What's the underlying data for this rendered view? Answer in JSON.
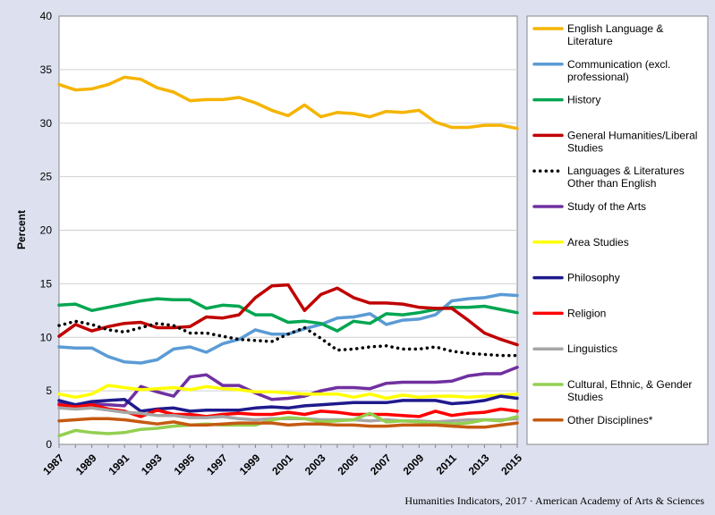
{
  "footer": {
    "credit": "Humanities Indicators, 2017 · American Academy of Arts & Sciences"
  },
  "chart_data": {
    "type": "line",
    "ylabel": "Percent",
    "xlabel": "",
    "ylim": [
      0,
      40
    ],
    "yticks": [
      0,
      5,
      10,
      15,
      20,
      25,
      30,
      35,
      40
    ],
    "x": [
      1987,
      1988,
      1989,
      1990,
      1991,
      1992,
      1993,
      1994,
      1995,
      1996,
      1997,
      1998,
      1999,
      2000,
      2001,
      2002,
      2003,
      2004,
      2005,
      2006,
      2007,
      2008,
      2009,
      2010,
      2011,
      2012,
      2013,
      2014,
      2015
    ],
    "xtick_labels": [
      "1987",
      "1989",
      "1991",
      "1993",
      "1995",
      "1997",
      "1999",
      "2001",
      "2003",
      "2005",
      "2007",
      "2009",
      "2011",
      "2013",
      "2015"
    ],
    "grid": "horizontal",
    "legend_position": "right",
    "series": [
      {
        "name": "English Language & Literature",
        "color": "#f5b400",
        "style": "solid",
        "values": [
          33.6,
          33.1,
          33.2,
          33.6,
          34.3,
          34.1,
          33.3,
          32.9,
          32.1,
          32.2,
          32.2,
          32.4,
          31.9,
          31.2,
          30.7,
          31.7,
          30.6,
          31.0,
          30.9,
          30.6,
          31.1,
          31.0,
          31.2,
          30.1,
          29.6,
          29.6,
          29.8,
          29.8,
          29.5
        ]
      },
      {
        "name": "Communication (excl. professional)",
        "color": "#5b9bd5",
        "style": "solid",
        "values": [
          9.1,
          9.0,
          9.0,
          8.2,
          7.7,
          7.6,
          7.9,
          8.9,
          9.1,
          8.6,
          9.4,
          9.8,
          10.7,
          10.3,
          10.3,
          10.8,
          11.2,
          11.8,
          11.9,
          12.2,
          11.2,
          11.6,
          11.7,
          12.1,
          13.4,
          13.6,
          13.7,
          14.0,
          13.9
        ]
      },
      {
        "name": "History",
        "color": "#00a651",
        "style": "solid",
        "values": [
          13.0,
          13.1,
          12.5,
          12.8,
          13.1,
          13.4,
          13.6,
          13.5,
          13.5,
          12.7,
          13.0,
          12.9,
          12.1,
          12.1,
          11.4,
          11.5,
          11.3,
          10.6,
          11.5,
          11.3,
          12.2,
          12.1,
          12.3,
          12.6,
          12.8,
          12.8,
          12.9,
          12.6,
          12.3
        ]
      },
      {
        "name": "General Humanities/Liberal Studies",
        "color": "#c00000",
        "style": "solid",
        "values": [
          10.1,
          11.2,
          10.6,
          11.0,
          11.3,
          11.4,
          10.9,
          10.9,
          11.0,
          11.9,
          11.8,
          12.1,
          13.7,
          14.8,
          14.9,
          12.5,
          14.0,
          14.6,
          13.7,
          13.2,
          13.2,
          13.1,
          12.8,
          12.7,
          12.7,
          11.6,
          10.4,
          9.8,
          9.3
        ]
      },
      {
        "name": "Languages & Literatures Other than English",
        "color": "#000000",
        "style": "dotted",
        "values": [
          11.1,
          11.5,
          11.2,
          10.7,
          10.5,
          10.9,
          11.3,
          11.1,
          10.4,
          10.4,
          10.1,
          9.8,
          9.7,
          9.6,
          10.3,
          10.9,
          9.9,
          8.8,
          8.9,
          9.1,
          9.2,
          8.9,
          8.9,
          9.1,
          8.7,
          8.5,
          8.4,
          8.3,
          8.3
        ]
      },
      {
        "name": "Study of the Arts",
        "color": "#7030a0",
        "style": "solid",
        "values": [
          3.8,
          3.7,
          3.8,
          3.7,
          3.6,
          5.4,
          4.9,
          4.5,
          6.3,
          6.5,
          5.5,
          5.5,
          4.8,
          4.2,
          4.3,
          4.5,
          5.0,
          5.3,
          5.3,
          5.2,
          5.7,
          5.8,
          5.8,
          5.8,
          5.9,
          6.4,
          6.6,
          6.6,
          7.2
        ]
      },
      {
        "name": "Area Studies",
        "color": "#ffff00",
        "style": "solid",
        "values": [
          4.7,
          4.4,
          4.7,
          5.5,
          5.3,
          5.1,
          5.2,
          5.3,
          5.1,
          5.4,
          5.2,
          5.1,
          4.9,
          4.9,
          4.8,
          4.7,
          4.7,
          4.7,
          4.4,
          4.7,
          4.3,
          4.6,
          4.4,
          4.5,
          4.5,
          4.4,
          4.5,
          4.6,
          4.7
        ]
      },
      {
        "name": "Philosophy",
        "color": "#1f1a8c",
        "style": "solid",
        "values": [
          4.1,
          3.7,
          4.0,
          4.1,
          4.2,
          3.1,
          3.3,
          3.4,
          3.1,
          3.2,
          3.2,
          3.2,
          3.4,
          3.5,
          3.4,
          3.6,
          3.7,
          3.8,
          3.9,
          3.9,
          3.9,
          4.1,
          4.1,
          4.1,
          3.8,
          3.9,
          4.1,
          4.5,
          4.3
        ]
      },
      {
        "name": "Religion",
        "color": "#ff0000",
        "style": "solid",
        "values": [
          3.7,
          3.5,
          3.7,
          3.3,
          3.1,
          2.6,
          3.2,
          2.8,
          2.8,
          2.6,
          2.8,
          2.9,
          2.8,
          2.8,
          3.0,
          2.8,
          3.1,
          3.0,
          2.8,
          2.8,
          2.8,
          2.7,
          2.6,
          3.1,
          2.7,
          2.9,
          3.0,
          3.3,
          3.1
        ]
      },
      {
        "name": "Linguistics",
        "color": "#a6a6a6",
        "style": "solid",
        "values": [
          3.4,
          3.3,
          3.4,
          3.2,
          3.0,
          2.9,
          2.7,
          2.7,
          2.5,
          2.5,
          2.6,
          2.4,
          2.3,
          2.4,
          2.4,
          2.4,
          2.3,
          2.3,
          2.3,
          2.2,
          2.3,
          2.2,
          2.2,
          2.1,
          2.2,
          2.3,
          2.3,
          2.3,
          2.4
        ]
      },
      {
        "name": "Cultural, Ethnic, & Gender Studies",
        "color": "#92d050",
        "style": "solid",
        "values": [
          0.8,
          1.3,
          1.1,
          1.0,
          1.1,
          1.4,
          1.5,
          1.7,
          1.8,
          1.9,
          1.8,
          1.8,
          1.8,
          2.3,
          2.5,
          2.4,
          2.1,
          2.2,
          2.3,
          2.9,
          2.1,
          2.2,
          2.1,
          2.0,
          1.9,
          2.0,
          2.3,
          2.2,
          2.6
        ]
      },
      {
        "name": "Other Disciplines*",
        "color": "#c55a11",
        "style": "solid",
        "values": [
          2.2,
          2.3,
          2.4,
          2.4,
          2.3,
          2.1,
          1.9,
          2.1,
          1.8,
          1.8,
          1.9,
          2.0,
          2.0,
          2.0,
          1.8,
          1.9,
          1.9,
          1.8,
          1.8,
          1.7,
          1.7,
          1.8,
          1.8,
          1.8,
          1.7,
          1.6,
          1.6,
          1.8,
          2.0
        ]
      }
    ]
  }
}
